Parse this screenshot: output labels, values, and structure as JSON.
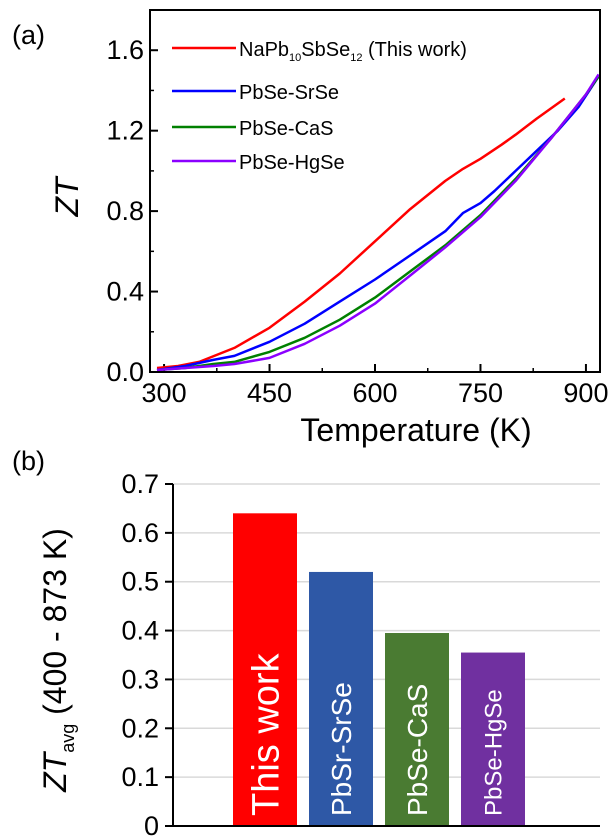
{
  "chart_data": [
    {
      "type": "line",
      "panel_label": "(a)",
      "xlabel": "Temperature (K)",
      "ylabel": {
        "text": "ZT"
      },
      "xlim": [
        280,
        920
      ],
      "ylim": [
        0,
        1.8
      ],
      "xticks": [
        "300",
        "450",
        "600",
        "750",
        "900"
      ],
      "yticks": [
        "0.0",
        "0.4",
        "0.8",
        "1.2",
        "1.6"
      ],
      "legend_position": "top-left",
      "series": [
        {
          "legend": {
            "base": "NaPb",
            "s1": "10",
            "mid": "SbSe",
            "s2": "12",
            "tail": " (This work)"
          },
          "color": "#ff0000",
          "x": [
            290,
            320,
            350,
            400,
            450,
            500,
            550,
            600,
            650,
            700,
            725,
            750,
            780,
            800,
            830,
            870
          ],
          "y": [
            0.02,
            0.03,
            0.05,
            0.12,
            0.22,
            0.35,
            0.49,
            0.65,
            0.81,
            0.95,
            1.01,
            1.06,
            1.13,
            1.18,
            1.26,
            1.36
          ]
        },
        {
          "legend": {
            "base": "PbSe-SrSe"
          },
          "color": "#0000ff",
          "x": [
            290,
            330,
            370,
            400,
            450,
            500,
            550,
            600,
            650,
            700,
            725,
            750,
            770,
            800,
            830,
            860,
            890,
            918
          ],
          "y": [
            0.01,
            0.03,
            0.06,
            0.08,
            0.15,
            0.24,
            0.35,
            0.46,
            0.58,
            0.7,
            0.79,
            0.84,
            0.9,
            1.0,
            1.1,
            1.2,
            1.32,
            1.47
          ]
        },
        {
          "legend": {
            "base": "PbSe-CaS"
          },
          "color": "#008000",
          "x": [
            290,
            330,
            370,
            400,
            450,
            500,
            550,
            600,
            650,
            700,
            750,
            800,
            850,
            900,
            918
          ],
          "y": [
            0.01,
            0.02,
            0.04,
            0.05,
            0.1,
            0.17,
            0.26,
            0.37,
            0.5,
            0.63,
            0.78,
            0.96,
            1.16,
            1.38,
            1.47
          ]
        },
        {
          "legend": {
            "base": "PbSe-HgSe"
          },
          "color": "#8b00ff",
          "x": [
            290,
            330,
            370,
            400,
            450,
            500,
            550,
            600,
            650,
            700,
            750,
            800,
            850,
            900,
            918
          ],
          "y": [
            0.01,
            0.02,
            0.03,
            0.04,
            0.07,
            0.14,
            0.23,
            0.34,
            0.48,
            0.62,
            0.77,
            0.95,
            1.16,
            1.38,
            1.48
          ]
        }
      ]
    },
    {
      "type": "bar",
      "panel_label": "(b)",
      "ylabel": {
        "base": "ZT",
        "sub": "avg",
        "rest": " (400 - 873 K)"
      },
      "ylim": [
        0,
        0.7
      ],
      "yticks": [
        "0",
        "0.1",
        "0.2",
        "0.3",
        "0.4",
        "0.5",
        "0.6",
        "0.7"
      ],
      "grid": true,
      "categories": [
        "This work",
        "PbSr-SrSe",
        "PbSe-CaS",
        "PbSe-HgSe"
      ],
      "values": [
        0.64,
        0.52,
        0.395,
        0.355
      ],
      "colors": [
        "#ff0000",
        "#2e58a6",
        "#4a7b32",
        "#7030a0"
      ]
    }
  ]
}
